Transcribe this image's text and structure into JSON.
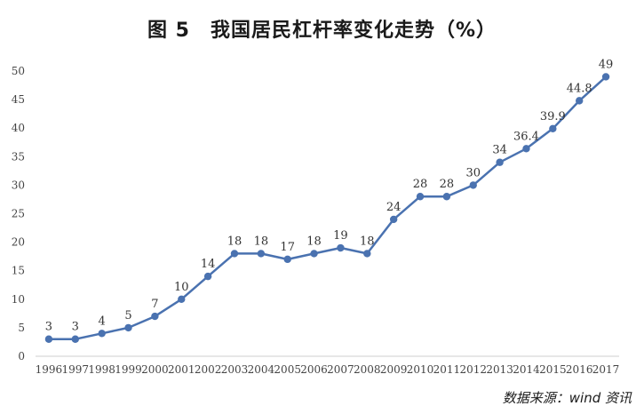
{
  "title": "图 5　我国居民杠杆率变化走势（%）",
  "source": "数据来源：wind 资讯",
  "chart_data": {
    "type": "line",
    "title": "图 5　我国居民杠杆率变化走势（%）",
    "xlabel": "",
    "ylabel": "",
    "ylim": [
      0,
      50
    ],
    "yticks": [
      0,
      5,
      10,
      15,
      20,
      25,
      30,
      35,
      40,
      45,
      50
    ],
    "grid": false,
    "legend": "none",
    "categories": [
      "1996",
      "1997",
      "1998",
      "1999",
      "2000",
      "2001",
      "2002",
      "2003",
      "2004",
      "2005",
      "2006",
      "2007",
      "2008",
      "2009",
      "2010",
      "2011",
      "2012",
      "2013",
      "2014",
      "2015",
      "2016",
      "2017"
    ],
    "series": [
      {
        "color": "#4a72b0",
        "values": [
          3,
          3,
          4,
          5,
          7,
          10,
          14,
          18,
          18,
          17,
          18,
          19,
          18,
          24,
          28,
          28,
          30,
          34,
          36.4,
          39.9,
          44.8,
          49
        ],
        "labels": [
          "3",
          "3",
          "4",
          "5",
          "7",
          "10",
          "14",
          "18",
          "18",
          "17",
          "18",
          "19",
          "18",
          "24",
          "28",
          "28",
          "30",
          "34",
          "36.4",
          "39.9",
          "44.8",
          "49"
        ]
      }
    ]
  }
}
